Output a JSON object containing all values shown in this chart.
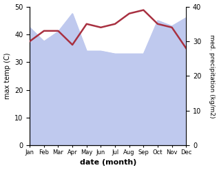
{
  "months": [
    "Jan",
    "Feb",
    "Mar",
    "Apr",
    "May",
    "Jun",
    "Jul",
    "Aug",
    "Sep",
    "Oct",
    "Nov",
    "Dec"
  ],
  "temp_max": [
    42.5,
    37.5,
    41.0,
    47.5,
    34.0,
    34.0,
    33.0,
    33.0,
    33.0,
    45.0,
    43.0,
    46.0
  ],
  "precipitation": [
    30,
    33,
    33,
    29,
    35,
    34,
    35,
    38,
    39,
    35,
    34,
    28
  ],
  "temp_fill_color": "#bfc9ee",
  "precip_color": "#a83040",
  "left_ylim": [
    0,
    50
  ],
  "right_ylim": [
    0,
    40
  ],
  "left_ylabel": "max temp (C)",
  "right_ylabel": "med. precipitation (kg/m2)",
  "xlabel": "date (month)",
  "left_yticks": [
    0,
    10,
    20,
    30,
    40,
    50
  ],
  "right_yticks": [
    0,
    10,
    20,
    30,
    40
  ]
}
